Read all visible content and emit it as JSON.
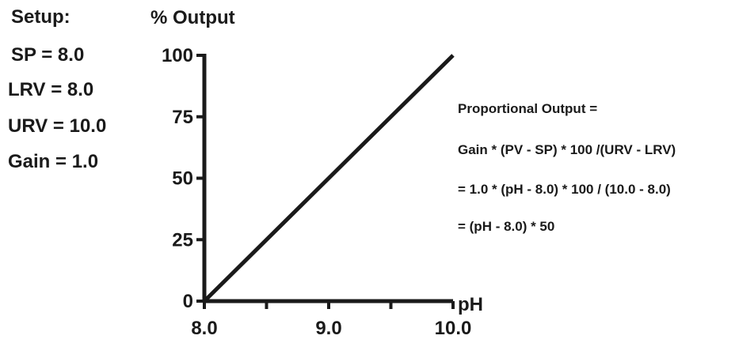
{
  "setup": {
    "heading": "Setup:",
    "lines": [
      "SP = 8.0",
      "LRV = 8.0",
      "URV = 10.0",
      "Gain = 1.0"
    ]
  },
  "formula": {
    "lines": [
      "Proportional Output =",
      "Gain * (PV - SP) * 100 /(URV - LRV)",
      "= 1.0 * (pH - 8.0) * 100 / (10.0 - 8.0)",
      "= (pH - 8.0) * 50"
    ]
  },
  "colors": {
    "ink": "#1a1a1a"
  },
  "chart_data": {
    "type": "line",
    "title": "",
    "xlabel": "pH",
    "ylabel": "% Output",
    "xlim": [
      8.0,
      10.0
    ],
    "ylim": [
      0,
      100
    ],
    "x_ticks": [
      8.0,
      8.5,
      9.0,
      9.5,
      10.0
    ],
    "x_tick_labels": [
      "8.0",
      "",
      "9.0",
      "",
      "10.0"
    ],
    "y_ticks": [
      0,
      25,
      50,
      75,
      100
    ],
    "y_tick_labels": [
      "0",
      "25",
      "50",
      "75",
      "100"
    ],
    "grid": false,
    "series": [
      {
        "x": [
          8.0,
          10.0
        ],
        "y": [
          0,
          100
        ]
      }
    ]
  }
}
